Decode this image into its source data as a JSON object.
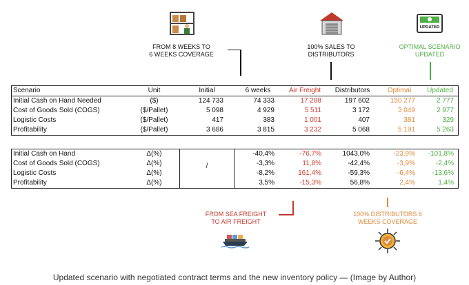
{
  "callouts": {
    "weeks": "FROM 8 WEEKS TO\n6 WEEKS COVERAGE",
    "sales": "100% SALES TO\nDISTRIBUTORS",
    "optimal": "OPTIMAL SCENARIO\nUPDATED",
    "sea_freight": "FROM SEA FREIGHT\nTO AIR FREIGHT",
    "distributors": "100% DISTRIBUTORS 6\nWEEKS COVERAGE"
  },
  "updated_badge": "UPDATED",
  "table1": {
    "headers": [
      "Scenario",
      "Unit",
      "Initial",
      "6 weeks",
      "Air Freight",
      "Distributors",
      "Optimal",
      "Updated"
    ],
    "rows": [
      {
        "cells": [
          "Initial Cash on Hand Needed",
          "($)",
          "124 733",
          "74 333",
          "17 288",
          "197 602",
          "150 277",
          "2 777"
        ],
        "marker": "-"
      },
      {
        "cells": [
          "Cost of Goods Sold (COGS)",
          "($/Pallet)",
          "5 098",
          "4 929",
          "5 511",
          "3 172",
          "3 049",
          "2 977"
        ]
      },
      {
        "cells": [
          "Logistic Costs",
          "($/Pallet)",
          "417",
          "383",
          "1 001",
          "407",
          "381",
          "329"
        ]
      },
      {
        "cells": [
          "Profitability",
          "($/Pallet)",
          "3 686",
          "3 815",
          "3 232",
          "5 068",
          "5 191",
          "5 263"
        ]
      }
    ]
  },
  "table2": {
    "rows": [
      {
        "cells": [
          "Initial Cash on Hand",
          "Δ(%)",
          "",
          "-40,4%",
          "-76,7%",
          "1043,0%",
          "-23,9%",
          "-101,8%"
        ]
      },
      {
        "cells": [
          "Cost of Goods Sold (COGS)",
          "Δ(%)",
          "/",
          "-3,3%",
          "11,8%",
          "-42,4%",
          "-3,9%",
          "-2,4%"
        ]
      },
      {
        "cells": [
          "Logistic Costs",
          "Δ(%)",
          "",
          "-8,2%",
          "161,4%",
          "-59,3%",
          "-6,4%",
          "-13,6%"
        ]
      },
      {
        "cells": [
          "Profitability",
          "Δ(%)",
          "",
          "3,5%",
          "-15,3%",
          "56,8%",
          "2,4%",
          "1,4%"
        ]
      }
    ]
  },
  "caption": "Updated scenario with negotiated contract terms and the new inventory policy — (Image by Author)",
  "colors": {
    "red": "#c0392b",
    "orange": "#e08a3c",
    "green": "#4fae44"
  },
  "icons": [
    "warehouse-worker-icon",
    "store-icon",
    "updated-badge-icon",
    "cargo-ship-icon",
    "medal-badge-icon"
  ]
}
